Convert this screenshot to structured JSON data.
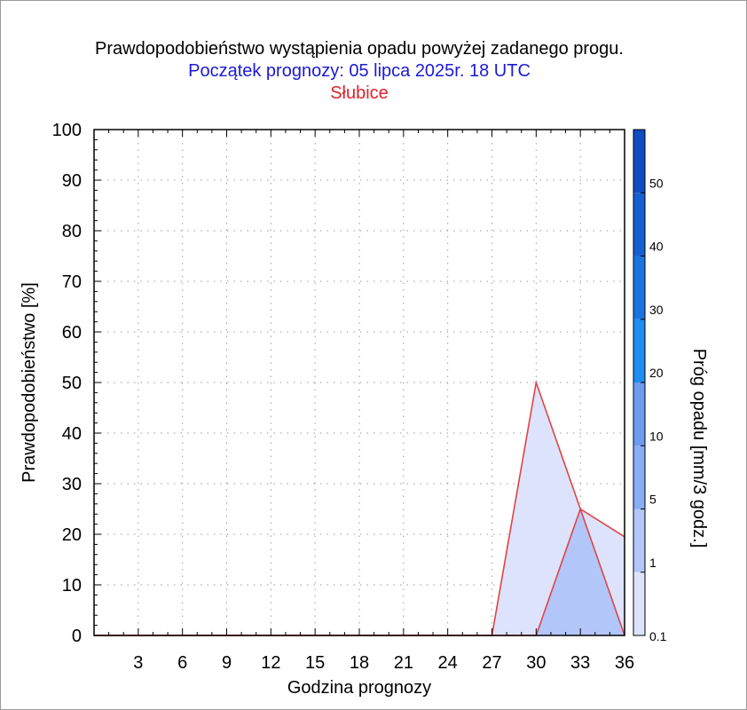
{
  "chart_data": {
    "type": "area",
    "title": "Prawdopodobieństwo wystąpienia opadu powyżej zadanego progu.",
    "subtitle": "Początek prognozy: 05 lipca 2025r. 18 UTC",
    "location": "Słubice",
    "xlabel": "Godzina prognozy",
    "ylabel": "Prawdopodobieństwo [%]",
    "xlim": [
      0,
      36
    ],
    "ylim": [
      0,
      100
    ],
    "x_ticks": [
      3,
      6,
      9,
      12,
      15,
      18,
      21,
      24,
      27,
      30,
      33,
      36
    ],
    "y_ticks": [
      0,
      10,
      20,
      30,
      40,
      50,
      60,
      70,
      80,
      90,
      100
    ],
    "grid": true,
    "x": [
      0,
      3,
      6,
      9,
      12,
      15,
      18,
      21,
      24,
      27,
      30,
      33,
      36
    ],
    "series": [
      {
        "name": "0.1",
        "color": "#dde3fc",
        "values": [
          0,
          0,
          0,
          0,
          0,
          0,
          0,
          0,
          0,
          0,
          50,
          25,
          19.5
        ]
      },
      {
        "name": "1",
        "color": "#b2c6fa",
        "values": [
          0,
          0,
          0,
          0,
          0,
          0,
          0,
          0,
          0,
          0,
          0,
          25,
          0
        ]
      }
    ],
    "series_line_color": "#e04444",
    "colorbar": {
      "label": "Próg opadu [mm/3 godz.]",
      "tick_labels": [
        "0.1",
        "1",
        "5",
        "10",
        "20",
        "30",
        "40",
        "50"
      ],
      "bands": [
        {
          "color": "#dde3fc"
        },
        {
          "color": "#b2c6fa"
        },
        {
          "color": "#88aef5"
        },
        {
          "color": "#6c9cf0"
        },
        {
          "color": "#1f8ef0"
        },
        {
          "color": "#1a74e0"
        },
        {
          "color": "#1560d0"
        },
        {
          "color": "#0f4cc0"
        }
      ]
    }
  }
}
